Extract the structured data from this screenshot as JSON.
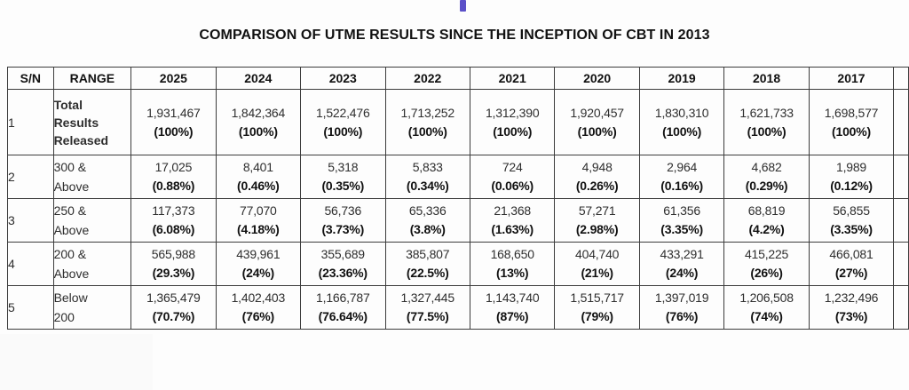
{
  "page": {
    "title": "COMPARISON OF UTME RESULTS SINCE THE INCEPTION OF CBT IN 2013",
    "accent_color": "#5b50c8"
  },
  "table": {
    "columns": [
      "S/N",
      "RANGE",
      "2025",
      "2024",
      "2023",
      "2022",
      "2021",
      "2020",
      "2019",
      "2018",
      "2017"
    ],
    "rows": [
      {
        "sn": "1",
        "range_lines": [
          "Total",
          "Results",
          "Released"
        ],
        "values": [
          "1,931,467",
          "1,842,364",
          "1,522,476",
          "1,713,252",
          "1,312,390",
          "1,920,457",
          "1,830,310",
          "1,621,733",
          "1,698,577"
        ],
        "percents": [
          "(100%)",
          "(100%)",
          "(100%)",
          "(100%)",
          "(100%)",
          "(100%)",
          "(100%)",
          "(100%)",
          "(100%)"
        ]
      },
      {
        "sn": "2",
        "range_lines": [
          "300 &",
          "Above"
        ],
        "values": [
          "17,025",
          "8,401",
          "5,318",
          "5,833",
          "724",
          "4,948",
          "2,964",
          "4,682",
          "1,989"
        ],
        "percents": [
          "(0.88%)",
          "(0.46%)",
          "(0.35%)",
          "(0.34%)",
          "(0.06%)",
          "(0.26%)",
          "(0.16%)",
          "(0.29%)",
          "(0.12%)"
        ]
      },
      {
        "sn": "3",
        "range_lines": [
          "250 &",
          "Above"
        ],
        "values": [
          "117,373",
          "77,070",
          "56,736",
          "65,336",
          "21,368",
          "57,271",
          "61,356",
          "68,819",
          "56,855"
        ],
        "percents": [
          "(6.08%)",
          "(4.18%)",
          "(3.73%)",
          "(3.8%)",
          "(1.63%)",
          "(2.98%)",
          "(3.35%)",
          "(4.2%)",
          "(3.35%)"
        ]
      },
      {
        "sn": "4",
        "range_lines": [
          "200 &",
          "Above"
        ],
        "values": [
          "565,988",
          "439,961",
          "355,689",
          "385,807",
          "168,650",
          "404,740",
          "433,291",
          "415,225",
          "466,081"
        ],
        "percents": [
          "(29.3%)",
          "(24%)",
          "(23.36%)",
          "(22.5%)",
          "(13%)",
          "(21%)",
          "(24%)",
          "(26%)",
          "(27%)"
        ]
      },
      {
        "sn": "5",
        "range_lines": [
          "Below",
          "200"
        ],
        "values": [
          "1,365,479",
          "1,402,403",
          "1,166,787",
          "1,327,445",
          "1,143,740",
          "1,515,717",
          "1,397,019",
          "1,206,508",
          "1,232,496"
        ],
        "percents": [
          "(70.7%)",
          "(76%)",
          "(76.64%)",
          "(77.5%)",
          "(87%)",
          "(79%)",
          "(76%)",
          "(74%)",
          "(73%)"
        ]
      }
    ]
  }
}
